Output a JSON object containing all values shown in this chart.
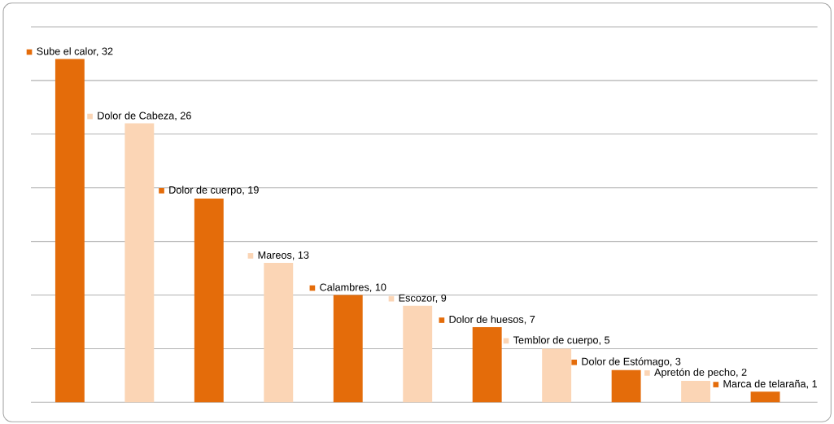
{
  "chart_data": {
    "type": "bar",
    "categories": [
      null,
      null,
      null,
      null,
      null,
      null,
      null,
      null,
      null,
      null,
      null
    ],
    "values": [
      32,
      26,
      19,
      13,
      10,
      9,
      7,
      5,
      3,
      2,
      1
    ],
    "value_labels": [
      "Sube el calor, 32",
      "Dolor de Cabeza, 26",
      "Dolor  de cuerpo, 19",
      "Mareos, 13",
      "Calambres, 10",
      "Escozor, 9",
      "Dolor de huesos, 7",
      "Temblor de cuerpo, 5",
      "Dolor de Estómago, 3",
      "Apretón de pecho, 2",
      "Marca de telaraña, 1"
    ],
    "colors": [
      "#e46c0a",
      "#fbd5b5",
      "#e46c0a",
      "#fbd5b5",
      "#e46c0a",
      "#fbd5b5",
      "#e46c0a",
      "#fbd5b5",
      "#e46c0a",
      "#fbd5b5",
      "#e46c0a"
    ],
    "ylim": [
      0,
      35
    ],
    "yticks": [
      {
        "value": 0,
        "label": null
      },
      {
        "value": 5,
        "label": null
      },
      {
        "value": 10,
        "label": null
      },
      {
        "value": 15,
        "label": null
      },
      {
        "value": 20,
        "label": null
      },
      {
        "value": 25,
        "label": null
      },
      {
        "value": 30,
        "label": null
      },
      {
        "value": 35,
        "label": null
      }
    ],
    "grid": "y"
  }
}
